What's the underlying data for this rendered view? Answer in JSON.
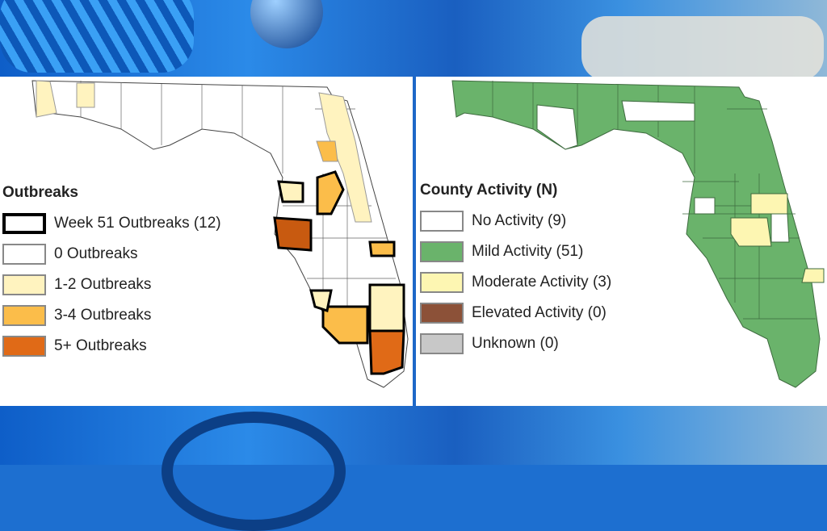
{
  "left_map": {
    "legend_title": "Outbreaks",
    "items": [
      {
        "label": "Week 51 Outbreaks (12)",
        "color": "#ffffff",
        "border": "#000000"
      },
      {
        "label": "0 Outbreaks",
        "color": "#ffffff",
        "border": "#888888"
      },
      {
        "label": "1-2 Outbreaks",
        "color": "#fff3bf",
        "border": "#999999"
      },
      {
        "label": "3-4 Outbreaks",
        "color": "#fbbd4a",
        "border": "#999999"
      },
      {
        "label": "5+ Outbreaks",
        "color": "#e06a17",
        "border": "#999999"
      }
    ]
  },
  "right_map": {
    "legend_title": "County Activity (N)",
    "items": [
      {
        "label": "No Activity (9)",
        "color": "#ffffff"
      },
      {
        "label": "Mild Activity (51)",
        "color": "#6ab36b"
      },
      {
        "label": "Moderate Activity (3)",
        "color": "#fdf6b2"
      },
      {
        "label": "Elevated Activity (0)",
        "color": "#8c5138"
      },
      {
        "label": "Unknown (0)",
        "color": "#c8c8c8"
      }
    ]
  }
}
